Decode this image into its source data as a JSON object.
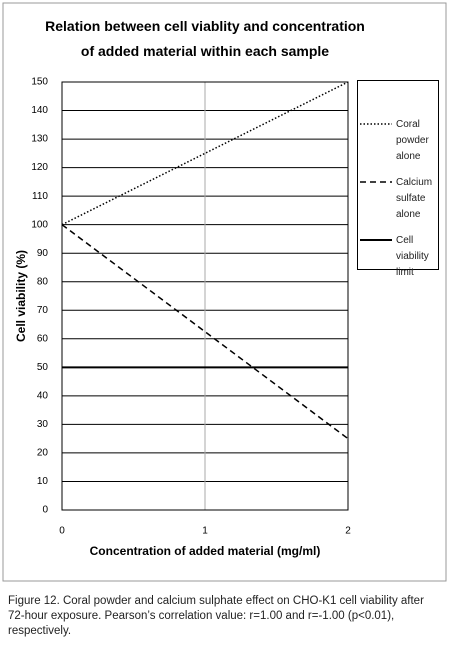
{
  "chart_data": {
    "type": "line",
    "title": "Relation between cell viablity and concentration of added material within each sample",
    "x_label": "Concentration of added material (mg/ml)",
    "y_label": "Cell viability (%)",
    "x": [
      0,
      1,
      2
    ],
    "series": [
      {
        "name": "Coral powder alone",
        "color": "#000000",
        "line_style": "dotted",
        "values": [
          100,
          125,
          150
        ]
      },
      {
        "name": "Calcium sulfate alone",
        "color": "#000000",
        "line_style": "dashed",
        "values": [
          100,
          62.5,
          25
        ]
      },
      {
        "name": "Cell viability limit",
        "color": "#000000",
        "line_style": "solid",
        "values": [
          50,
          50,
          50
        ]
      }
    ],
    "xlim": [
      0,
      2
    ],
    "xticks": [
      0,
      1,
      2
    ],
    "ylim": [
      0,
      150
    ],
    "yticks": [
      0,
      10,
      20,
      30,
      40,
      50,
      60,
      70,
      80,
      90,
      100,
      110,
      120,
      130,
      140,
      150
    ],
    "grid": true,
    "legend": "right"
  },
  "caption": "Figure 12. Coral powder and calcium sulphate effect on CHO-K1 cell viability after 72-hour exposure. Pearson’s correlation value: r=1.00 and r=-1.00 (p<0.01), respectively."
}
